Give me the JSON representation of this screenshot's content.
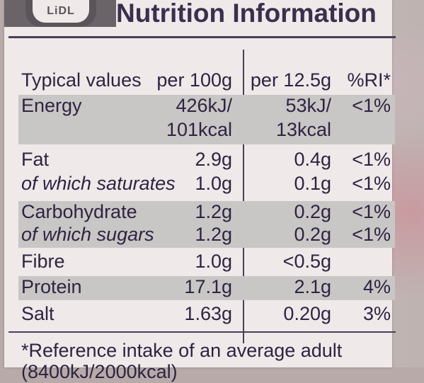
{
  "logo": {
    "text": "LiDL"
  },
  "title": "Nutrition Information",
  "header": {
    "label": "Typical values",
    "per100": "per 100g",
    "perServing": "per 12.5g",
    "ri": "%RI*"
  },
  "rows": [
    {
      "name": "Energy",
      "per100": "426kJ/",
      "perServing": "53kJ/",
      "ri": "<1%"
    },
    {
      "name": "",
      "per100": "101kcal",
      "perServing": "13kcal",
      "ri": ""
    },
    {
      "name": "Fat",
      "per100": "2.9g",
      "perServing": "0.4g",
      "ri": "<1%"
    },
    {
      "name": "of which saturates",
      "per100": "1.0g",
      "perServing": "0.1g",
      "ri": "<1%"
    },
    {
      "name": "Carbohydrate",
      "per100": "1.2g",
      "perServing": "0.2g",
      "ri": "<1%"
    },
    {
      "name": "of which sugars",
      "per100": "1.2g",
      "perServing": "0.2g",
      "ri": "<1%"
    },
    {
      "name": "Fibre",
      "per100": "1.0g",
      "perServing": "<0.5g",
      "ri": ""
    },
    {
      "name": "Protein",
      "per100": "17.1g",
      "perServing": "2.1g",
      "ri": "4%"
    },
    {
      "name": "Salt",
      "per100": "1.63g",
      "perServing": "0.20g",
      "ri": "3%"
    }
  ],
  "footnote": "*Reference intake of an average adult",
  "footnote_line2": "(8400kJ/2000kcal)"
}
